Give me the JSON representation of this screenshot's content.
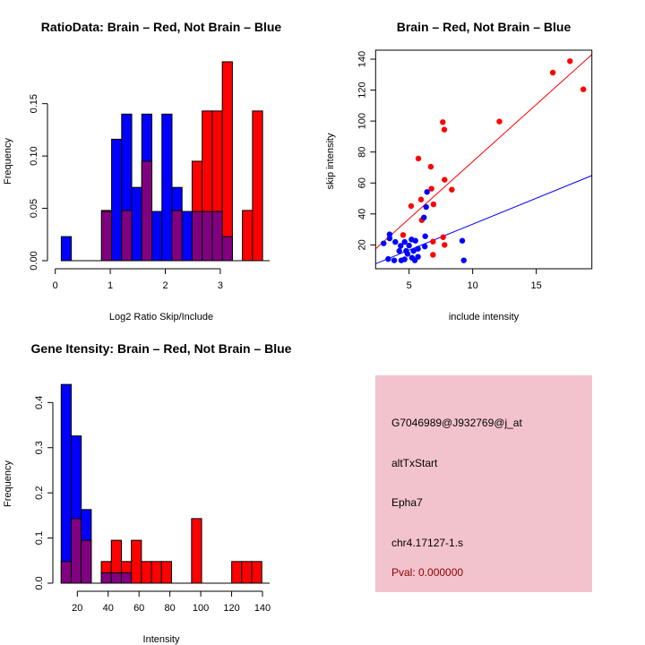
{
  "chart_data": [
    {
      "type": "bar",
      "title": "RatioData: Brain – Red, Not Brain – Blue",
      "xlabel": "Log2 Ratio Skip/Include",
      "ylabel": "Frequency",
      "bin_start": 0.109,
      "bin_width": 0.183,
      "xticks": [
        "0",
        "1",
        "2",
        "3"
      ],
      "xtick_values": [
        0,
        1,
        2,
        3
      ],
      "yticks": [
        "0.00",
        "0.05",
        "0.10",
        "0.15"
      ],
      "ytick_values": [
        0,
        0.05,
        0.1,
        0.15
      ],
      "series": [
        {
          "name": "Brain",
          "color": "#ff0000",
          "values": [
            0,
            0,
            0,
            0,
            0.048,
            0,
            0.048,
            0,
            0.095,
            0,
            0,
            0.048,
            0,
            0.095,
            0.143,
            0.143,
            0.19,
            0,
            0.048,
            0.143
          ]
        },
        {
          "name": "Not Brain",
          "color": "#0000ff",
          "values": [
            0.023,
            0,
            0,
            0,
            0.047,
            0.116,
            0.14,
            0.07,
            0.14,
            0.047,
            0.14,
            0.07,
            0.047,
            0.047,
            0.047,
            0.047,
            0.023,
            0,
            0,
            0
          ]
        }
      ],
      "overlap_color": "#800080"
    },
    {
      "type": "scatter",
      "title": "Brain – Red, Not Brain – Blue",
      "xlabel": "include intensity",
      "ylabel": "skip intensity",
      "xlim": [
        2.37,
        19.37
      ],
      "ylim": [
        4.6,
        145.8
      ],
      "xticks": [
        "5",
        "10",
        "15"
      ],
      "xtick_values": [
        5,
        10,
        15
      ],
      "yticks": [
        "20",
        "40",
        "60",
        "80",
        "100",
        "120",
        "140"
      ],
      "ytick_values": [
        20,
        40,
        60,
        80,
        100,
        120,
        140
      ],
      "series": [
        {
          "name": "Brain",
          "color": "#ff0000",
          "fit": {
            "slope": 7.38,
            "intercept": 0.0
          },
          "points": [
            [
              17.65,
              138.7
            ],
            [
              16.3,
              131.3
            ],
            [
              18.7,
              120.5
            ],
            [
              12.1,
              99.7
            ],
            [
              7.65,
              99.3
            ],
            [
              7.77,
              94.5
            ],
            [
              5.73,
              75.8
            ],
            [
              6.71,
              70.5
            ],
            [
              7.79,
              62.1
            ],
            [
              6.76,
              56.3
            ],
            [
              8.36,
              55.7
            ],
            [
              5.94,
              49.3
            ],
            [
              5.16,
              45.1
            ],
            [
              6.92,
              46.2
            ],
            [
              6.0,
              36
            ],
            [
              4.53,
              26.4
            ],
            [
              7.68,
              25
            ],
            [
              6.88,
              22.1
            ],
            [
              7.79,
              20
            ],
            [
              6.88,
              13.6
            ]
          ]
        },
        {
          "name": "Not Brain",
          "color": "#0000ff",
          "fit": {
            "slope": 3.35,
            "intercept": -0.1
          },
          "points": [
            [
              6.41,
              54.2
            ],
            [
              6.34,
              44.5
            ],
            [
              6.17,
              37.7
            ],
            [
              3.47,
              26.8
            ],
            [
              3.47,
              24.2
            ],
            [
              3.0,
              21
            ],
            [
              3.92,
              21.9
            ],
            [
              6.27,
              25.6
            ],
            [
              6.24,
              19
            ],
            [
              9.18,
              22.7
            ],
            [
              9.3,
              10
            ],
            [
              3.36,
              10.9
            ],
            [
              3.83,
              10
            ],
            [
              4.39,
              10
            ],
            [
              4.23,
              16.1
            ],
            [
              4.65,
              21.9
            ],
            [
              5.19,
              23.5
            ],
            [
              5.5,
              22.7
            ],
            [
              5.7,
              17.5
            ],
            [
              4.88,
              14.2
            ],
            [
              5.23,
              11.7
            ],
            [
              5.7,
              12.3
            ],
            [
              5.45,
              10
            ],
            [
              4.65,
              10.7
            ],
            [
              4.34,
              19.4
            ],
            [
              5.0,
              19.6
            ],
            [
              5.35,
              16.1
            ],
            [
              4.77,
              16.1
            ]
          ]
        }
      ]
    },
    {
      "type": "bar",
      "title": "Gene Itensity: Brain – Red, Not Brain – Blue",
      "xlabel": "Intensity",
      "ylabel": "Frequency",
      "bin_start": 9.55,
      "bin_width": 6.5,
      "xticks": [
        "20",
        "40",
        "60",
        "80",
        "100",
        "120",
        "140"
      ],
      "xtick_values": [
        20,
        40,
        60,
        80,
        100,
        120,
        140
      ],
      "yticks": [
        "0.0",
        "0.1",
        "0.2",
        "0.3",
        "0.4"
      ],
      "ytick_values": [
        0,
        0.1,
        0.2,
        0.3,
        0.4
      ],
      "series": [
        {
          "name": "Brain",
          "color": "#ff0000",
          "values": [
            0.048,
            0.143,
            0.095,
            0,
            0.048,
            0.095,
            0.048,
            0.095,
            0.048,
            0.048,
            0.048,
            0,
            0,
            0.143,
            0,
            0,
            0,
            0.048,
            0.048,
            0.048
          ]
        },
        {
          "name": "Not Brain",
          "color": "#0000ff",
          "values": [
            0.44,
            0.326,
            0.163,
            0,
            0.023,
            0.023,
            0.023,
            0,
            0,
            0,
            0,
            0,
            0,
            0,
            0,
            0,
            0,
            0,
            0,
            0
          ]
        }
      ],
      "overlap_color": "#800080"
    }
  ],
  "info_panel": {
    "background": "#f3c3cd",
    "probe_id": "G7046989@J932769@j_at",
    "event_type": "altTxStart",
    "gene": "Epha7",
    "location": "chr4.17127-1.s",
    "pval": "Pval: 0.000000",
    "pval_color": "#8b0000"
  }
}
